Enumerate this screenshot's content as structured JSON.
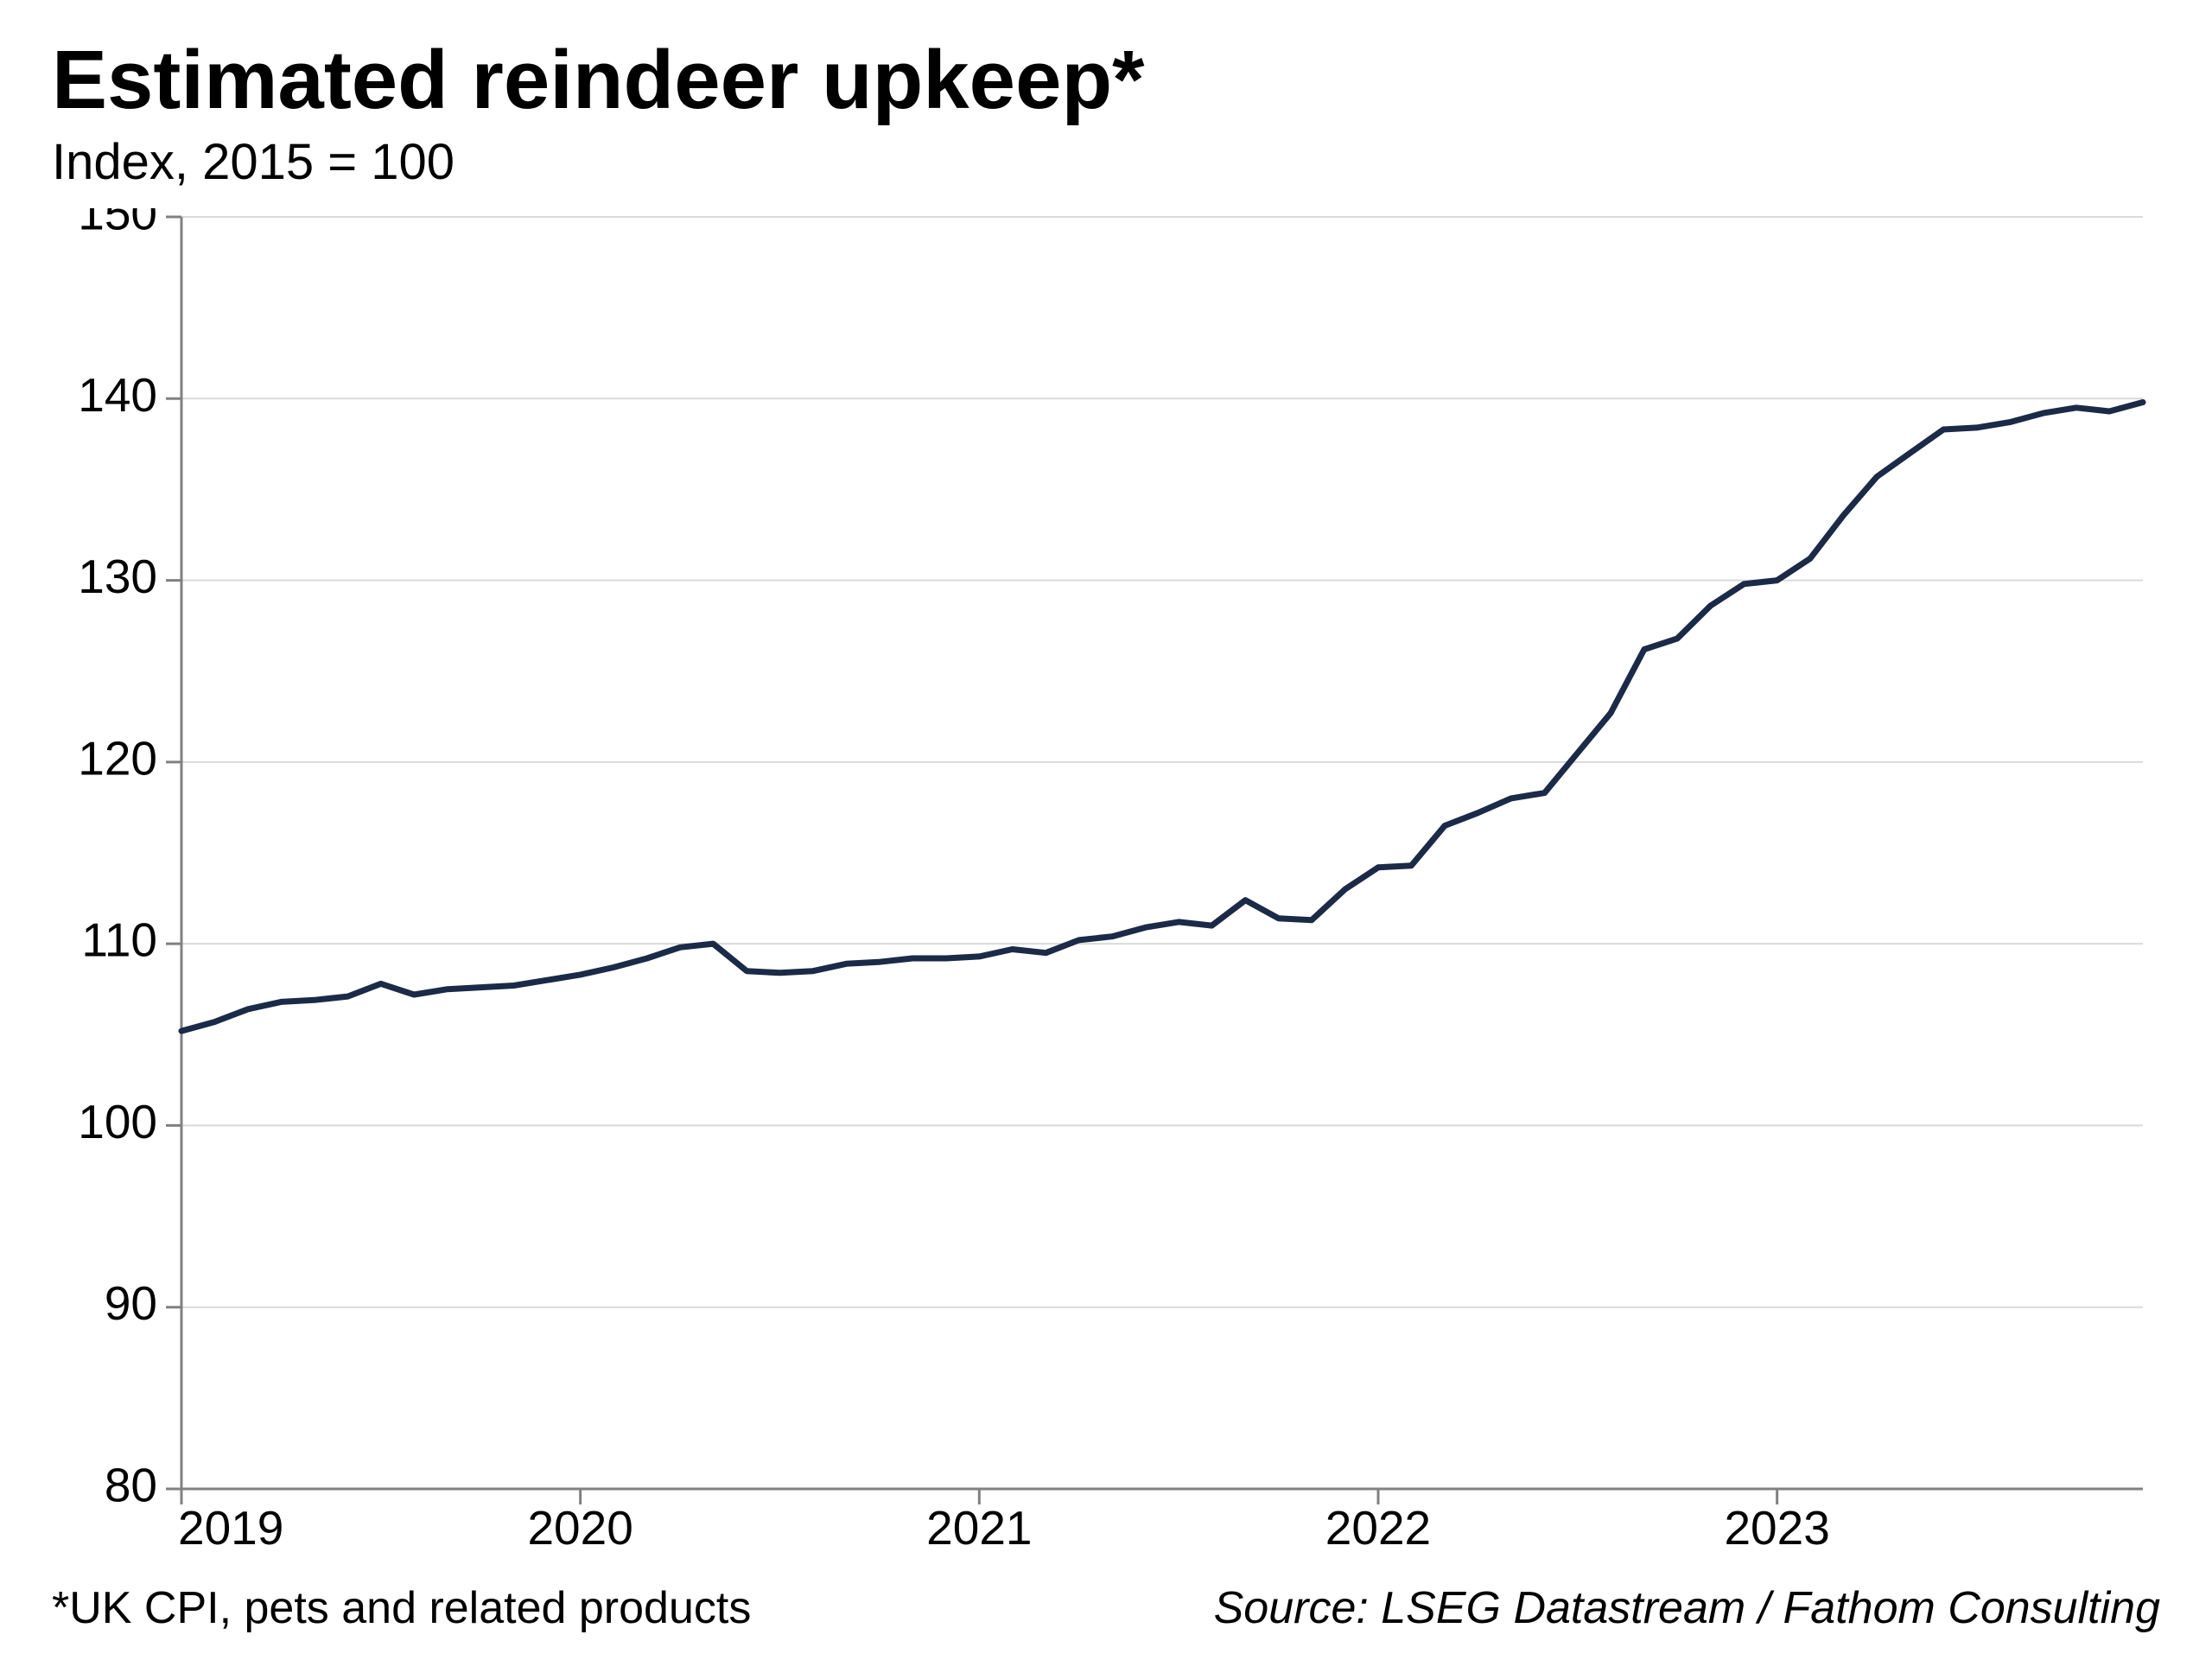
{
  "title": "Estimated reindeer upkeep*",
  "subtitle": "Index, 2015 = 100",
  "footnote": "*UK CPI, pets and related products",
  "source": "Source: LSEG Datastream / Fathom Consulting",
  "chart": {
    "type": "line",
    "background_color": "#ffffff",
    "grid_color": "#d9d9d9",
    "axis_color": "#808080",
    "line_color": "#1b2a47",
    "line_width": 7,
    "tick_fontsize": 55,
    "title_fontsize": 96,
    "subtitle_fontsize": 58,
    "footer_fontsize": 52,
    "x": {
      "min": 2019.0,
      "max": 2023.917,
      "ticks": [
        2019,
        2020,
        2021,
        2022,
        2023
      ],
      "tick_labels": [
        "2019",
        "2020",
        "2021",
        "2022",
        "2023"
      ]
    },
    "y": {
      "min": 80,
      "max": 150,
      "ticks": [
        80,
        90,
        100,
        110,
        120,
        130,
        140,
        150
      ],
      "tick_labels": [
        "80",
        "90",
        "100",
        "110",
        "120",
        "130",
        "140",
        "150"
      ]
    },
    "series": [
      {
        "name": "reindeer_upkeep_index",
        "x": [
          2019.0,
          2019.083,
          2019.167,
          2019.25,
          2019.333,
          2019.417,
          2019.5,
          2019.583,
          2019.667,
          2019.75,
          2019.833,
          2019.917,
          2020.0,
          2020.083,
          2020.167,
          2020.25,
          2020.333,
          2020.417,
          2020.5,
          2020.583,
          2020.667,
          2020.75,
          2020.833,
          2020.917,
          2021.0,
          2021.083,
          2021.167,
          2021.25,
          2021.333,
          2021.417,
          2021.5,
          2021.583,
          2021.667,
          2021.75,
          2021.833,
          2021.917,
          2022.0,
          2022.083,
          2022.167,
          2022.25,
          2022.333,
          2022.417,
          2022.5,
          2022.583,
          2022.667,
          2022.75,
          2022.833,
          2022.917,
          2023.0,
          2023.083,
          2023.167,
          2023.25,
          2023.333,
          2023.417,
          2023.5,
          2023.583,
          2023.667,
          2023.75,
          2023.833,
          2023.917
        ],
        "y": [
          105.2,
          105.7,
          106.4,
          106.8,
          106.9,
          107.1,
          107.8,
          107.2,
          107.5,
          107.6,
          107.7,
          108.0,
          108.3,
          108.7,
          109.2,
          109.8,
          110.0,
          108.5,
          108.4,
          108.5,
          108.9,
          109.0,
          109.2,
          109.2,
          109.3,
          109.7,
          109.5,
          110.2,
          110.4,
          110.9,
          111.2,
          111.0,
          112.4,
          111.4,
          111.3,
          113.0,
          114.2,
          114.3,
          116.5,
          117.2,
          118.0,
          118.3,
          120.5,
          122.7,
          126.2,
          126.8,
          128.6,
          129.8,
          130.0,
          131.2,
          133.6,
          135.7,
          137.0,
          138.3,
          138.4,
          138.7,
          139.2,
          139.5,
          139.3,
          139.8
        ]
      }
    ]
  }
}
